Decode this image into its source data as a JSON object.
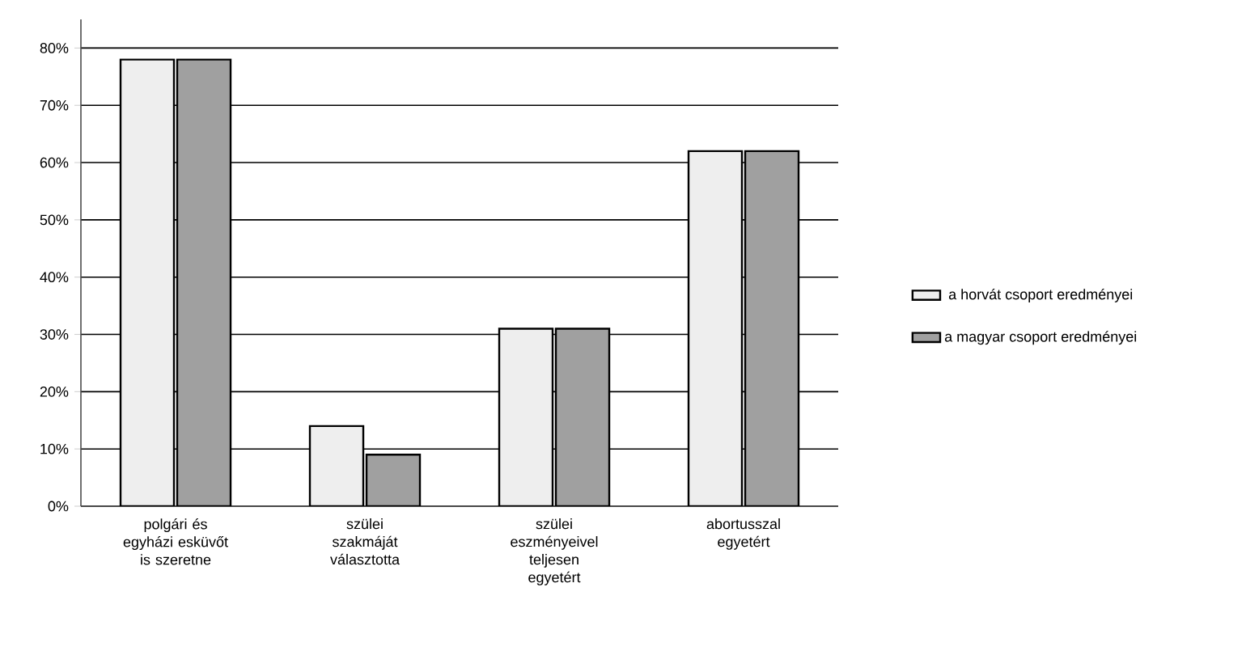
{
  "chart_data": {
    "type": "bar",
    "categories": [
      "polgári és egyházi esküvőt is szeretne",
      "szülei szakmáját választotta",
      "szülei eszményeivel teljesen egyetért",
      "abortusszal egyetért"
    ],
    "series": [
      {
        "name": "a horvát csoport eredményei",
        "color": "#eeeeee",
        "values": [
          78,
          14,
          31,
          62
        ]
      },
      {
        "name": "a magyar csoport eredményei",
        "color": "#a0a0a0",
        "values": [
          78,
          9,
          31,
          62
        ]
      }
    ],
    "ylim": [
      0,
      85
    ],
    "yticks": [
      {
        "value": 0,
        "label": "0%"
      },
      {
        "value": 10,
        "label": "10%"
      },
      {
        "value": 20,
        "label": "20%"
      },
      {
        "value": 30,
        "label": "30%"
      },
      {
        "value": 40,
        "label": "40%"
      },
      {
        "value": 50,
        "label": "50%"
      },
      {
        "value": 60,
        "label": "60%"
      },
      {
        "value": 70,
        "label": "70%"
      },
      {
        "value": 80,
        "label": "80%"
      }
    ],
    "grid": "y",
    "legend": "right"
  }
}
